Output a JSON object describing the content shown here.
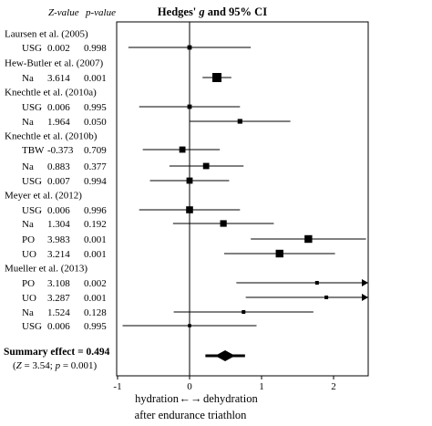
{
  "chart_data": {
    "type": "forest",
    "title": "Hedges' g and 95% CI",
    "column_headers": {
      "z": "Z-value",
      "p": "p-value"
    },
    "xlim": [
      -1,
      2.5
    ],
    "xticks": [
      "-1",
      "0",
      "1",
      "2"
    ],
    "xticks_values": [
      -1,
      0,
      1,
      2
    ],
    "x_caption_left": "hydration",
    "x_caption_arrow": "←→",
    "x_caption_right": "dehydration",
    "x_caption_line2": "after endurance triathlon",
    "groups": [
      {
        "study": "Laursen et al. (2005)",
        "rows": [
          {
            "label": "USG",
            "z": "0.002",
            "p": "0.998",
            "g": 0.0,
            "lo": -0.85,
            "hi": 0.85,
            "weight": 0.35,
            "arrow": false
          }
        ]
      },
      {
        "study": "Hew-Butler et al. (2007)",
        "rows": [
          {
            "label": "Na",
            "z": "3.614",
            "p": "0.001",
            "g": 0.38,
            "lo": 0.18,
            "hi": 0.58,
            "weight": 1.0,
            "arrow": false
          }
        ]
      },
      {
        "study": "Knechtle et al. (2010a)",
        "rows": [
          {
            "label": "USG",
            "z": "0.006",
            "p": "0.995",
            "g": 0.0,
            "lo": -0.7,
            "hi": 0.7,
            "weight": 0.35,
            "arrow": false
          },
          {
            "label": "Na",
            "z": "1.964",
            "p": "0.050",
            "g": 0.7,
            "lo": 0.0,
            "hi": 1.4,
            "weight": 0.4,
            "arrow": false
          }
        ]
      },
      {
        "study": "Knechtle et al. (2010b)",
        "rows": [
          {
            "label": "TBW",
            "z": "-0.373",
            "p": "0.709",
            "g": -0.1,
            "lo": -0.65,
            "hi": 0.42,
            "weight": 0.6,
            "arrow": false
          },
          {
            "label": "Na",
            "z": "0.883",
            "p": "0.377",
            "g": 0.23,
            "lo": -0.28,
            "hi": 0.75,
            "weight": 0.6,
            "arrow": false
          },
          {
            "label": "USG",
            "z": "0.007",
            "p": "0.994",
            "g": 0.0,
            "lo": -0.55,
            "hi": 0.55,
            "weight": 0.6,
            "arrow": false
          }
        ]
      },
      {
        "study": "Meyer et al. (2012)",
        "rows": [
          {
            "label": "USG",
            "z": "0.006",
            "p": "0.996",
            "g": 0.0,
            "lo": -0.7,
            "hi": 0.7,
            "weight": 0.7,
            "arrow": false
          },
          {
            "label": "Na",
            "z": "1.304",
            "p": "0.192",
            "g": 0.47,
            "lo": -0.23,
            "hi": 1.17,
            "weight": 0.65,
            "arrow": false
          },
          {
            "label": "PO",
            "z": "3.983",
            "p": "0.001",
            "g": 1.65,
            "lo": 0.85,
            "hi": 2.45,
            "weight": 0.8,
            "arrow": false
          },
          {
            "label": "UO",
            "z": "3.214",
            "p": "0.001",
            "g": 1.25,
            "lo": 0.48,
            "hi": 2.02,
            "weight": 0.8,
            "arrow": false
          }
        ]
      },
      {
        "study": "Mueller et al. (2013)",
        "rows": [
          {
            "label": "PO",
            "z": "3.108",
            "p": "0.002",
            "g": 1.77,
            "lo": 0.65,
            "hi": 2.5,
            "weight": 0.25,
            "arrow": true
          },
          {
            "label": "UO",
            "z": "3.287",
            "p": "0.001",
            "g": 1.9,
            "lo": 0.78,
            "hi": 2.5,
            "weight": 0.25,
            "arrow": true
          },
          {
            "label": "Na",
            "z": "1.524",
            "p": "0.128",
            "g": 0.75,
            "lo": -0.22,
            "hi": 1.72,
            "weight": 0.25,
            "arrow": false
          },
          {
            "label": "USG",
            "z": "0.006",
            "p": "0.995",
            "g": 0.0,
            "lo": -0.93,
            "hi": 0.93,
            "weight": 0.2,
            "arrow": false
          }
        ]
      }
    ],
    "summary": {
      "label": "Summary effect = 0.494",
      "stats": "(Z = 3.54; p = 0.001)",
      "g": 0.494,
      "lo": 0.22,
      "hi": 0.77
    }
  }
}
